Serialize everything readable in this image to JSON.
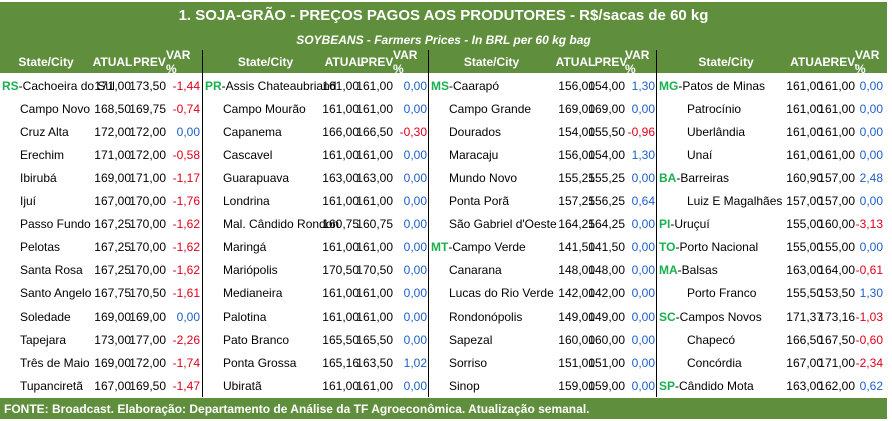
{
  "title": "1. SOJA-GRÃO - PREÇOS PAGOS AOS PRODUTORES - R$/sacas de 60 kg",
  "subtitle": "SOYBEANS - Farmers Prices - In BRL per 60 kg bag",
  "footer": "FONTE: Broadcast. Elaboração: Departamento de Análise da TF Agroeconômica. Atualização semanal.",
  "colors": {
    "header_bg": "#5f8e3d",
    "state_code": "#19b04e",
    "negative": "#e0001b",
    "positive": "#1f5fc7"
  },
  "groups": [
    {
      "headers": [
        "State/City",
        "ATUAL",
        "PREV",
        "VAR %"
      ],
      "rows": [
        {
          "state": "RS",
          "city": "Cachoeira do Sul",
          "atual": "171,00",
          "prev": "173,50",
          "var": "-1,44"
        },
        {
          "state": "",
          "city": "Campo Novo",
          "atual": "168,50",
          "prev": "169,75",
          "var": "-0,74"
        },
        {
          "state": "",
          "city": "Cruz Alta",
          "atual": "172,00",
          "prev": "172,00",
          "var": "0,00"
        },
        {
          "state": "",
          "city": "Erechim",
          "atual": "171,00",
          "prev": "172,00",
          "var": "-0,58"
        },
        {
          "state": "",
          "city": "Ibirubá",
          "atual": "169,00",
          "prev": "171,00",
          "var": "-1,17"
        },
        {
          "state": "",
          "city": "Ijuí",
          "atual": "167,00",
          "prev": "170,00",
          "var": "-1,76"
        },
        {
          "state": "",
          "city": "Passo Fundo",
          "atual": "167,25",
          "prev": "170,00",
          "var": "-1,62"
        },
        {
          "state": "",
          "city": "Pelotas",
          "atual": "167,25",
          "prev": "170,00",
          "var": "-1,62"
        },
        {
          "state": "",
          "city": "Santa Rosa",
          "atual": "167,25",
          "prev": "170,00",
          "var": "-1,62"
        },
        {
          "state": "",
          "city": "Santo Angelo",
          "atual": "167,75",
          "prev": "170,50",
          "var": "-1,61"
        },
        {
          "state": "",
          "city": "Soledade",
          "atual": "169,00",
          "prev": "169,00",
          "var": "0,00"
        },
        {
          "state": "",
          "city": "Tapejara",
          "atual": "173,00",
          "prev": "177,00",
          "var": "-2,26"
        },
        {
          "state": "",
          "city": "Três de Maio",
          "atual": "169,00",
          "prev": "172,00",
          "var": "-1,74"
        },
        {
          "state": "",
          "city": "Tupanciretã",
          "atual": "167,00",
          "prev": "169,50",
          "var": "-1,47"
        }
      ]
    },
    {
      "headers": [
        "State/City",
        "ATUAL",
        "PREV",
        "VAR %"
      ],
      "rows": [
        {
          "state": "PR",
          "city": "Assis Chateaubriand",
          "atual": "161,00",
          "prev": "161,00",
          "var": "0,00"
        },
        {
          "state": "",
          "city": "Campo Mourão",
          "atual": "161,00",
          "prev": "161,00",
          "var": "0,00"
        },
        {
          "state": "",
          "city": "Capanema",
          "atual": "166,00",
          "prev": "166,50",
          "var": "-0,30"
        },
        {
          "state": "",
          "city": "Cascavel",
          "atual": "161,00",
          "prev": "161,00",
          "var": "0,00"
        },
        {
          "state": "",
          "city": "Guarapuava",
          "atual": "163,00",
          "prev": "163,00",
          "var": "0,00"
        },
        {
          "state": "",
          "city": "Londrina",
          "atual": "161,00",
          "prev": "161,00",
          "var": "0,00"
        },
        {
          "state": "",
          "city": "Mal. Cândido Rondon",
          "atual": "160,75",
          "prev": "160,75",
          "var": "0,00"
        },
        {
          "state": "",
          "city": "Maringá",
          "atual": "161,00",
          "prev": "161,00",
          "var": "0,00"
        },
        {
          "state": "",
          "city": "Mariópolis",
          "atual": "170,50",
          "prev": "170,50",
          "var": "0,00"
        },
        {
          "state": "",
          "city": "Medianeira",
          "atual": "161,00",
          "prev": "161,00",
          "var": "0,00"
        },
        {
          "state": "",
          "city": "Palotina",
          "atual": "161,00",
          "prev": "161,00",
          "var": "0,00"
        },
        {
          "state": "",
          "city": "Pato Branco",
          "atual": "165,50",
          "prev": "165,50",
          "var": "0,00"
        },
        {
          "state": "",
          "city": "Ponta Grossa",
          "atual": "165,16",
          "prev": "163,50",
          "var": "1,02"
        },
        {
          "state": "",
          "city": "Ubiratã",
          "atual": "161,00",
          "prev": "161,00",
          "var": "0,00"
        }
      ]
    },
    {
      "headers": [
        "State/City",
        "ATUAL",
        "PREV",
        "VAR %"
      ],
      "rows": [
        {
          "state": "MS",
          "city": "Caarapó",
          "atual": "156,00",
          "prev": "154,00",
          "var": "1,30"
        },
        {
          "state": "",
          "city": "Campo Grande",
          "atual": "169,00",
          "prev": "169,00",
          "var": "0,00"
        },
        {
          "state": "",
          "city": "Dourados",
          "atual": "154,00",
          "prev": "155,50",
          "var": "-0,96"
        },
        {
          "state": "",
          "city": "Maracaju",
          "atual": "156,00",
          "prev": "154,00",
          "var": "1,30"
        },
        {
          "state": "",
          "city": "Mundo Novo",
          "atual": "155,25",
          "prev": "155,25",
          "var": "0,00"
        },
        {
          "state": "",
          "city": "Ponta Porã",
          "atual": "157,25",
          "prev": "156,25",
          "var": "0,64"
        },
        {
          "state": "",
          "city": "São Gabriel d'Oeste",
          "atual": "164,25",
          "prev": "164,25",
          "var": "0,00"
        },
        {
          "state": "MT",
          "city": "Campo Verde",
          "atual": "141,50",
          "prev": "141,50",
          "var": "0,00"
        },
        {
          "state": "",
          "city": "Canarana",
          "atual": "148,00",
          "prev": "148,00",
          "var": "0,00"
        },
        {
          "state": "",
          "city": "Lucas do Rio Verde",
          "atual": "142,00",
          "prev": "142,00",
          "var": "0,00"
        },
        {
          "state": "",
          "city": "Rondonópolis",
          "atual": "149,00",
          "prev": "149,00",
          "var": "0,00"
        },
        {
          "state": "",
          "city": "Sapezal",
          "atual": "160,00",
          "prev": "160,00",
          "var": "0,00"
        },
        {
          "state": "",
          "city": "Sorriso",
          "atual": "151,00",
          "prev": "151,00",
          "var": "0,00"
        },
        {
          "state": "",
          "city": "Sinop",
          "atual": "159,00",
          "prev": "159,00",
          "var": "0,00"
        }
      ]
    },
    {
      "headers": [
        "State/City",
        "ATUAL",
        "PREV.",
        "VAR %"
      ],
      "rows": [
        {
          "state": "MG",
          "city": "Patos de Minas",
          "atual": "161,00",
          "prev": "161,00",
          "var": "0,00"
        },
        {
          "state": "",
          "city": "Patrocínio",
          "atual": "161,00",
          "prev": "161,00",
          "var": "0,00"
        },
        {
          "state": "",
          "city": "Uberlândia",
          "atual": "161,00",
          "prev": "161,00",
          "var": "0,00"
        },
        {
          "state": "",
          "city": "Unaí",
          "atual": "161,00",
          "prev": "161,00",
          "var": "0,00"
        },
        {
          "state": "BA",
          "city": "Barreiras",
          "atual": "160,90",
          "prev": "157,00",
          "var": "2,48"
        },
        {
          "state": "",
          "city": "Luiz E Magalhães",
          "atual": "157,00",
          "prev": "157,00",
          "var": "0,00"
        },
        {
          "state": "PI",
          "city": "Uruçuí",
          "atual": "155,00",
          "prev": "160,00",
          "var": "-3,13"
        },
        {
          "state": "TO",
          "city": "Porto Nacional",
          "atual": "155,00",
          "prev": "155,00",
          "var": "0,00"
        },
        {
          "state": "MA",
          "city": "Balsas",
          "atual": "163,00",
          "prev": "164,00",
          "var": "-0,61"
        },
        {
          "state": "",
          "city": "Porto Franco",
          "atual": "155,50",
          "prev": "153,50",
          "var": "1,30"
        },
        {
          "state": "SC",
          "city": "Campos Novos",
          "atual": "171,37",
          "prev": "173,16",
          "var": "-1,03"
        },
        {
          "state": "",
          "city": "Chapecó",
          "atual": "166,50",
          "prev": "167,50",
          "var": "-0,60"
        },
        {
          "state": "",
          "city": "Concórdia",
          "atual": "167,00",
          "prev": "171,00",
          "var": "-2,34"
        },
        {
          "state": "SP",
          "city": "Cândido Mota",
          "atual": "163,00",
          "prev": "162,00",
          "var": "0,62"
        }
      ]
    }
  ]
}
